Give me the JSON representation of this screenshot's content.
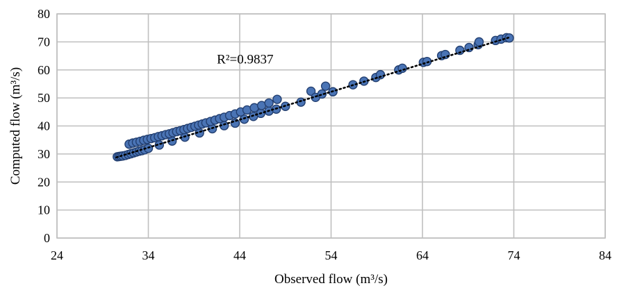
{
  "chart_data": {
    "type": "scatter",
    "title": "",
    "xlabel": "Observed flow (m³/s)",
    "ylabel": "Computed flow (m³/s)",
    "xlim": [
      24,
      84
    ],
    "ylim": [
      0,
      80
    ],
    "x_ticks": [
      24,
      34,
      44,
      54,
      64,
      74,
      84
    ],
    "y_ticks": [
      0,
      10,
      20,
      30,
      40,
      50,
      60,
      70,
      80
    ],
    "grid": true,
    "legend": "none",
    "trendline": {
      "style": "dotted",
      "x": [
        30.5,
        73.5
      ],
      "y": [
        28.8,
        71.6
      ]
    },
    "annotation": {
      "text": "R²=0.9837",
      "x": 41.5,
      "y": 62.3
    },
    "marker_color": "#4a74b5",
    "marker_edge_color": "#233f70",
    "series": [
      {
        "values": [
          [
            30.6,
            29.0
          ],
          [
            30.8,
            29.1
          ],
          [
            31.0,
            29.2
          ],
          [
            31.2,
            29.3
          ],
          [
            31.5,
            29.5
          ],
          [
            31.8,
            29.8
          ],
          [
            32.1,
            30.1
          ],
          [
            32.4,
            30.4
          ],
          [
            32.7,
            30.7
          ],
          [
            33.0,
            31.0
          ],
          [
            33.3,
            31.2
          ],
          [
            33.6,
            31.5
          ],
          [
            34.0,
            32.0
          ],
          [
            35.2,
            33.2
          ],
          [
            36.6,
            34.6
          ],
          [
            38.0,
            36.0
          ],
          [
            39.6,
            37.5
          ],
          [
            41.0,
            39.0
          ],
          [
            42.3,
            40.1
          ],
          [
            43.5,
            41.0
          ],
          [
            44.5,
            42.4
          ],
          [
            45.5,
            43.4
          ],
          [
            46.3,
            44.5
          ],
          [
            47.2,
            45.3
          ],
          [
            48.0,
            46.0
          ],
          [
            31.9,
            33.5
          ],
          [
            32.3,
            33.9
          ],
          [
            32.7,
            34.2
          ],
          [
            33.1,
            34.5
          ],
          [
            33.5,
            34.9
          ],
          [
            33.9,
            35.2
          ],
          [
            34.3,
            35.5
          ],
          [
            34.7,
            35.8
          ],
          [
            35.1,
            36.2
          ],
          [
            35.5,
            36.5
          ],
          [
            35.9,
            36.9
          ],
          [
            36.3,
            37.2
          ],
          [
            36.7,
            37.6
          ],
          [
            37.1,
            38.0
          ],
          [
            37.5,
            38.3
          ],
          [
            37.9,
            38.7
          ],
          [
            38.3,
            39.1
          ],
          [
            38.7,
            39.5
          ],
          [
            39.1,
            39.9
          ],
          [
            39.5,
            40.3
          ],
          [
            39.9,
            40.7
          ],
          [
            40.3,
            41.1
          ],
          [
            40.8,
            41.6
          ],
          [
            41.3,
            42.1
          ],
          [
            41.8,
            42.6
          ],
          [
            42.3,
            43.1
          ],
          [
            42.9,
            43.7
          ],
          [
            43.5,
            44.3
          ],
          [
            44.1,
            45.0
          ],
          [
            44.8,
            45.7
          ],
          [
            45.6,
            46.5
          ],
          [
            46.4,
            47.3
          ],
          [
            47.2,
            48.2
          ],
          [
            48.1,
            49.5
          ],
          [
            49.0,
            47.0
          ],
          [
            50.7,
            48.5
          ],
          [
            51.8,
            52.4
          ],
          [
            52.3,
            50.2
          ],
          [
            53.0,
            51.4
          ],
          [
            53.4,
            54.2
          ],
          [
            54.2,
            52.2
          ],
          [
            56.4,
            54.7
          ],
          [
            57.6,
            56.0
          ],
          [
            58.9,
            57.3
          ],
          [
            59.4,
            58.3
          ],
          [
            61.4,
            60.0
          ],
          [
            61.8,
            60.6
          ],
          [
            64.1,
            62.7
          ],
          [
            64.5,
            63.0
          ],
          [
            66.1,
            65.1
          ],
          [
            66.5,
            65.5
          ],
          [
            68.1,
            67.0
          ],
          [
            69.1,
            68.0
          ],
          [
            70.1,
            69.0
          ],
          [
            70.2,
            70.0
          ],
          [
            72.0,
            70.5
          ],
          [
            72.6,
            71.0
          ],
          [
            73.2,
            71.5
          ],
          [
            73.5,
            71.4
          ]
        ]
      }
    ]
  }
}
